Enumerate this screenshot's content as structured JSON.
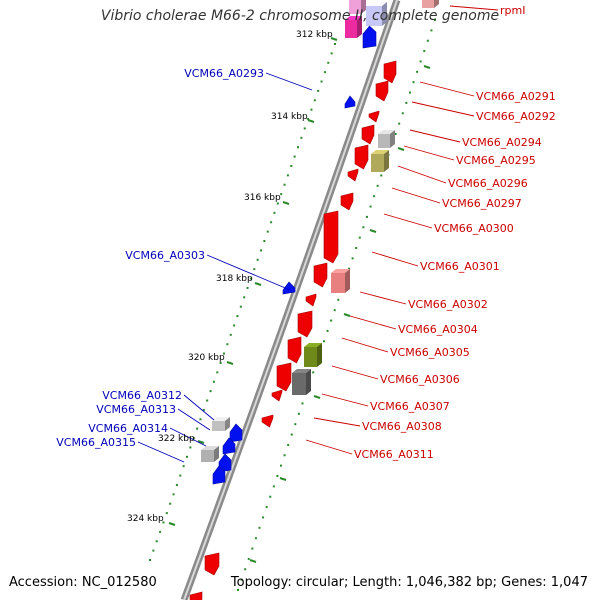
{
  "title": "Vibrio cholerae M66-2 chromosome II, complete genome",
  "accession": "Accession: NC_012580",
  "topology": "Topology: circular; Length: 1,046,382 bp; Genes: 1,047",
  "colors": {
    "backbone": "#8a8a8a",
    "tick": "#2a8a2a",
    "forward_label": "#cc0000",
    "reverse_label": "#0000bb",
    "cds_forward": "#ee0000",
    "cds_reverse": "#0010ee",
    "pseudo": "#b8b8b8",
    "rna": "#ee2aa0"
  },
  "kbp_labels": [
    "312 kbp",
    "314 kbp",
    "316 kbp",
    "318 kbp",
    "320 kbp",
    "322 kbp",
    "324 kbp"
  ],
  "forward_labels": [
    "rpmI",
    "VCM66_A0291",
    "VCM66_A0292",
    "VCM66_A0294",
    "VCM66_A0295",
    "VCM66_A0296",
    "VCM66_A0297",
    "VCM66_A0300",
    "VCM66_A0301",
    "VCM66_A0302",
    "VCM66_A0304",
    "VCM66_A0305",
    "VCM66_A0306",
    "VCM66_A0307",
    "VCM66_A0308",
    "VCM66_A0311"
  ],
  "reverse_labels": [
    "VCM66_A0293",
    "VCM66_A0303",
    "VCM66_A0312",
    "VCM66_A0313",
    "VCM66_A0314",
    "VCM66_A0315"
  ]
}
